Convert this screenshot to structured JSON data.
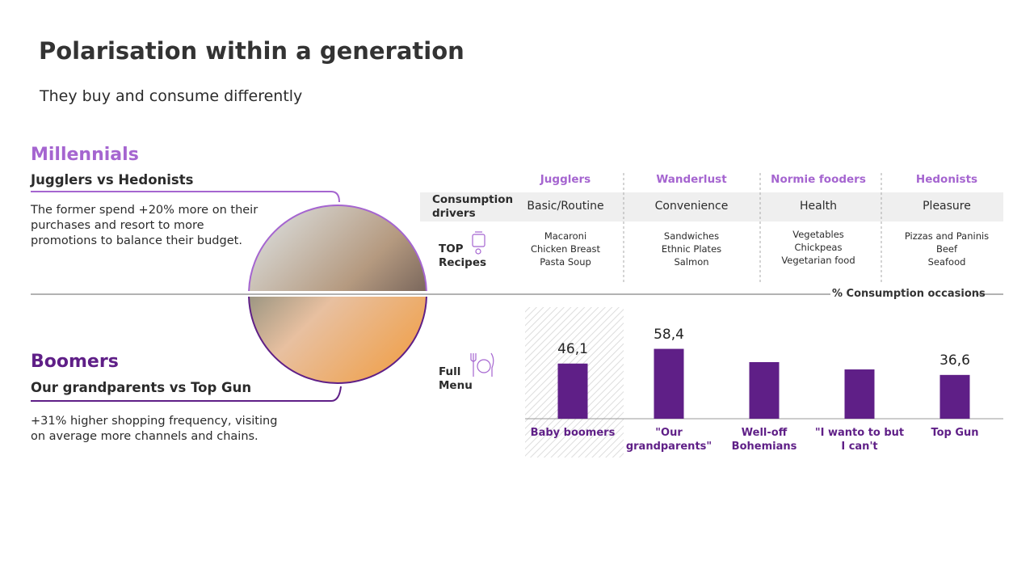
{
  "header": {
    "title": "Polarisation within a generation",
    "subtitle": "They buy and consume differently"
  },
  "segments": [
    {
      "group": "Millennials",
      "title": "Jugglers vs Hedonists",
      "text": "The former spend +20% more on their purchases and resort to more promotions to balance their budget."
    },
    {
      "group": "Boomers",
      "title": "Our grandparents vs Top Gun",
      "text": "+31% higher shopping frequency, visiting on average more channels and chains."
    }
  ],
  "table": {
    "columns": [
      "Jugglers",
      "Wanderlust",
      "Normie fooders",
      "Hedonists"
    ],
    "rows": [
      {
        "label": "Consumption drivers",
        "cells": [
          "Basic/Routine",
          "Convenience",
          "Health",
          "Pleasure"
        ]
      },
      {
        "label": "TOP Recipes",
        "cells": [
          [
            "Macaroni",
            "Chicken Breast",
            "Pasta Soup"
          ],
          [
            "Sandwiches",
            "Ethnic Plates",
            "Salmon"
          ],
          [
            "Vegetables",
            "Chickpeas",
            "Vegetarian food"
          ],
          [
            "Pizzas and Paninis",
            "Beef",
            "Seafood"
          ]
        ]
      }
    ]
  },
  "chart_data": {
    "type": "bar",
    "label": "Full Menu",
    "axis_label": "% Consumption occasions",
    "categories": [
      "Baby boomers",
      "\"Our grandparents\"",
      "Well-off Bohemians",
      "\"I wanto to but I can't",
      "Top Gun"
    ],
    "values": [
      46.1,
      58.4,
      47.3,
      41.2,
      36.6
    ],
    "value_labels": [
      "46,1",
      "58,4",
      null,
      null,
      "36,6"
    ],
    "color": "#5f1f87"
  }
}
